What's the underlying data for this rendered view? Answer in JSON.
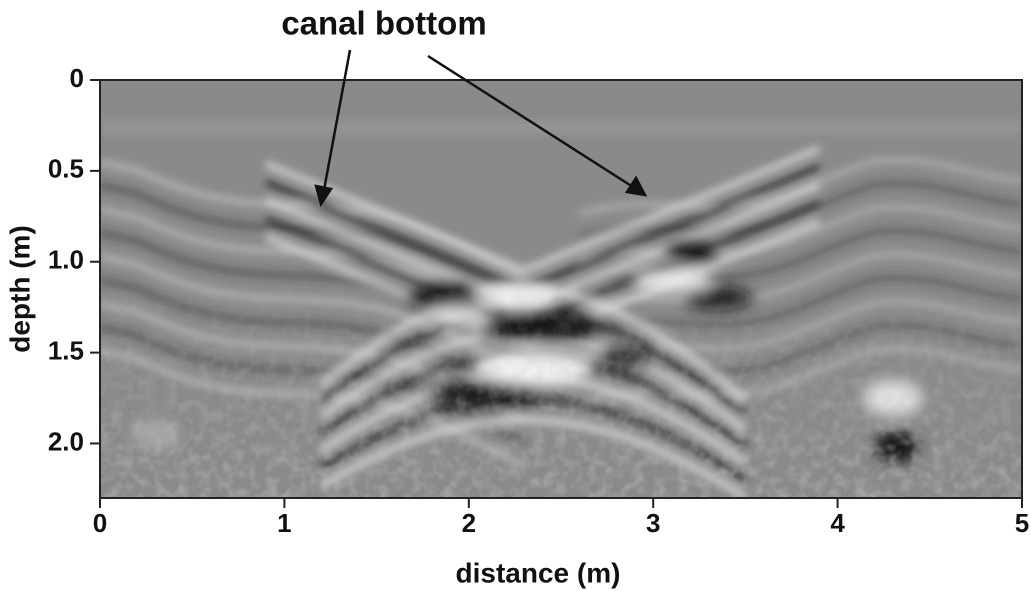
{
  "chart_data": {
    "type": "radargram",
    "annotation": "canal bottom",
    "xlabel": "distance (m)",
    "ylabel": "depth (m)",
    "xlim": [
      0,
      5
    ],
    "xticks": [
      0,
      1,
      2,
      3,
      4,
      5
    ],
    "ylim": [
      0,
      2.3
    ],
    "yticks": [
      0,
      0.5,
      {
        "value": 1,
        "label": "1.0"
      },
      1.5,
      {
        "value": 2,
        "label": "2.0"
      }
    ],
    "y_inverted": true,
    "colormap": "grayscale"
  }
}
